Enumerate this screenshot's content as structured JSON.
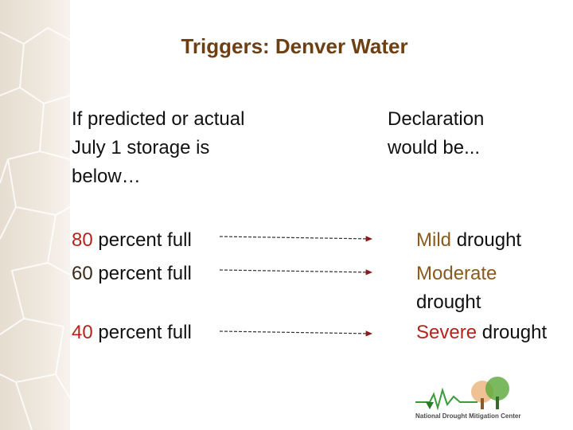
{
  "slide": {
    "title": "Triggers: Denver Water",
    "left_header": [
      "If predicted or actual",
      "July 1 storage is",
      "below…"
    ],
    "right_header": [
      "Declaration",
      "would be..."
    ],
    "rows": [
      {
        "threshold": "80",
        "threshold_text": "percent full",
        "level": "Mild",
        "level_text": "drought"
      },
      {
        "threshold": "60",
        "threshold_text": "percent full",
        "level": "Moderate",
        "level_text": "drought"
      },
      {
        "threshold": "40",
        "threshold_text": "percent full",
        "level": "Severe",
        "level_text": "drought"
      }
    ],
    "logo": {
      "text": "National Drought Mitigation Center"
    }
  }
}
